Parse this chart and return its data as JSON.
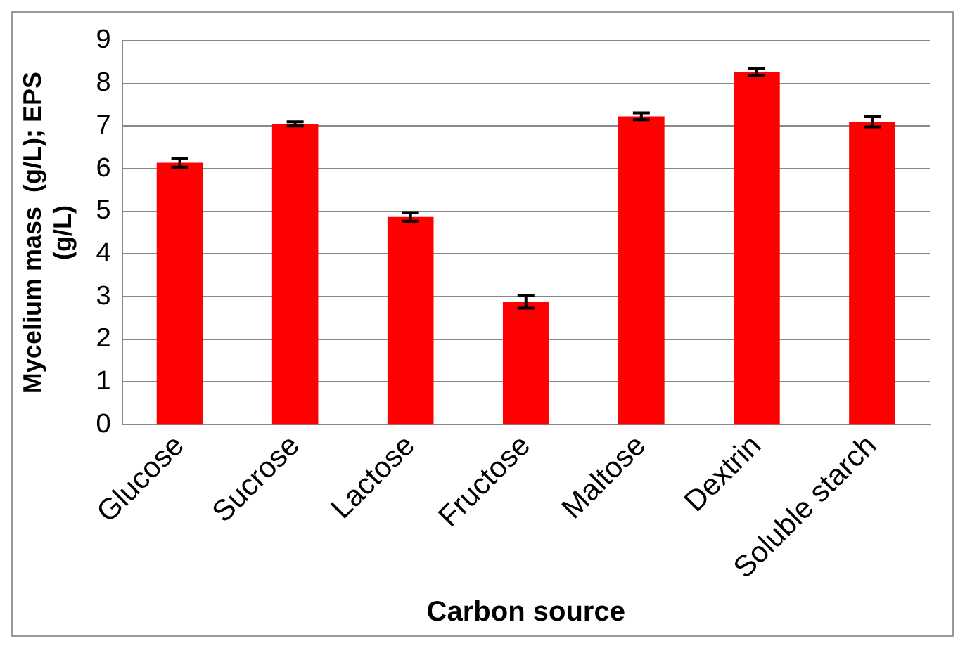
{
  "chart_data": {
    "type": "bar",
    "xlabel": "Carbon source",
    "ylabel": "Mycelium mass  (g/L); EPS (g/L)",
    "categories": [
      "Glucose",
      "Sucrose",
      "Lactose",
      "Fructose",
      "Maltose",
      "Dextrin",
      "Soluble starch"
    ],
    "values": [
      6.14,
      7.05,
      4.87,
      2.88,
      7.23,
      8.27,
      7.1
    ],
    "errors": [
      0.1,
      0.05,
      0.1,
      0.15,
      0.08,
      0.08,
      0.12
    ],
    "color": "#ff0000",
    "ylim": [
      0,
      9
    ],
    "yticks": [
      0,
      1,
      2,
      3,
      4,
      5,
      6,
      7,
      8,
      9
    ],
    "grid": "y"
  }
}
